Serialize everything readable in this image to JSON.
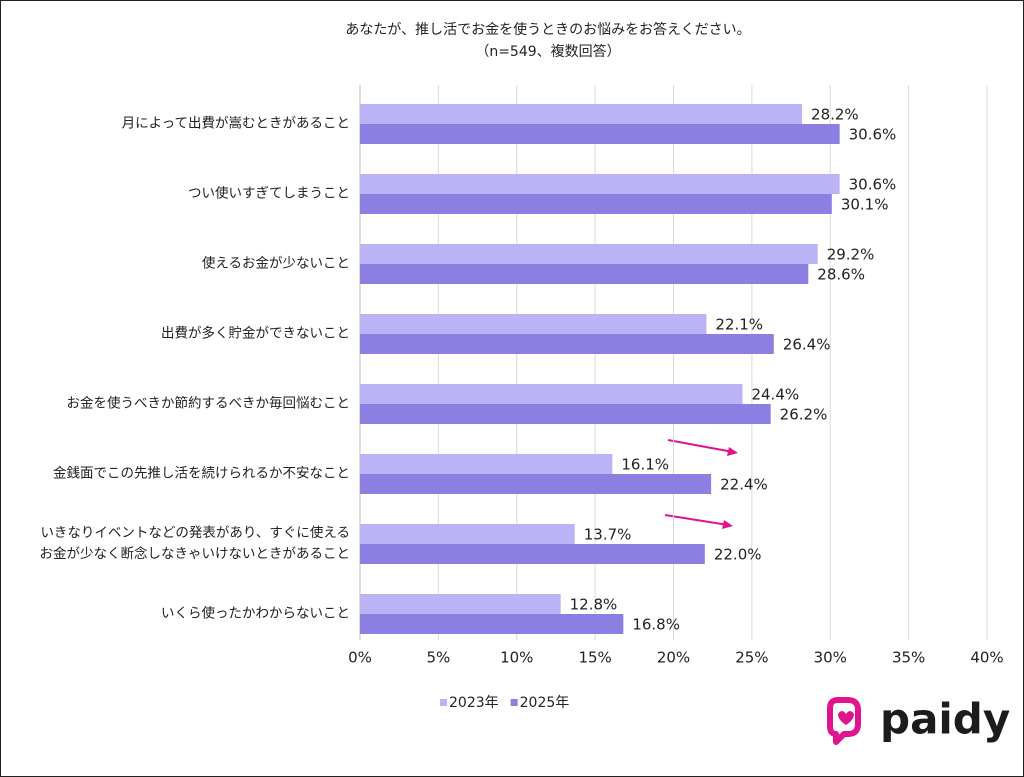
{
  "chart_data": {
    "type": "barh",
    "title": "あなたが、推し活でお金を使うときのお悩みをお答えください。",
    "subtitle": "（n=549、複数回答）",
    "categories": [
      "月によって出費が嵩むときがあること",
      "つい使いすぎてしまうこと",
      "使えるお金が少ないこと",
      "出費が多く貯金ができないこと",
      "お金を使うべきか節約するべきか毎回悩むこと",
      "金銭面でこの先推し活を続けられるか不安なこと",
      "いきなりイベントなどの発表があり、すぐに使える\nお金が少なく断念しなきゃいけないときがあること",
      "いくら使ったかわからないこと"
    ],
    "series": [
      {
        "name": "2023年",
        "color": "#bab4f6",
        "values": [
          28.2,
          30.6,
          29.2,
          22.1,
          24.4,
          16.1,
          13.7,
          12.8
        ],
        "value_labels": [
          "28.2%",
          "30.6%",
          "29.2%",
          "22.1%",
          "24.4%",
          "16.1%",
          "13.7%",
          "12.8%"
        ]
      },
      {
        "name": "2025年",
        "color": "#8b80e2",
        "values": [
          30.6,
          30.1,
          28.6,
          26.4,
          26.2,
          22.4,
          22.0,
          16.8
        ],
        "value_labels": [
          "30.6%",
          "30.1%",
          "28.6%",
          "26.4%",
          "26.2%",
          "22.4%",
          "22.0%",
          "16.8%"
        ]
      }
    ],
    "xlim": [
      0,
      40
    ],
    "xticks": [
      {
        "value": 0,
        "label": "0%"
      },
      {
        "value": 5,
        "label": "5%"
      },
      {
        "value": 10,
        "label": "10%"
      },
      {
        "value": 15,
        "label": "15%"
      },
      {
        "value": 20,
        "label": "20%"
      },
      {
        "value": 25,
        "label": "25%"
      },
      {
        "value": 30,
        "label": "30%"
      },
      {
        "value": 35,
        "label": "35%"
      },
      {
        "value": 40,
        "label": "40%"
      }
    ],
    "grid": true,
    "legend": "bottom"
  },
  "logo": "paidy"
}
